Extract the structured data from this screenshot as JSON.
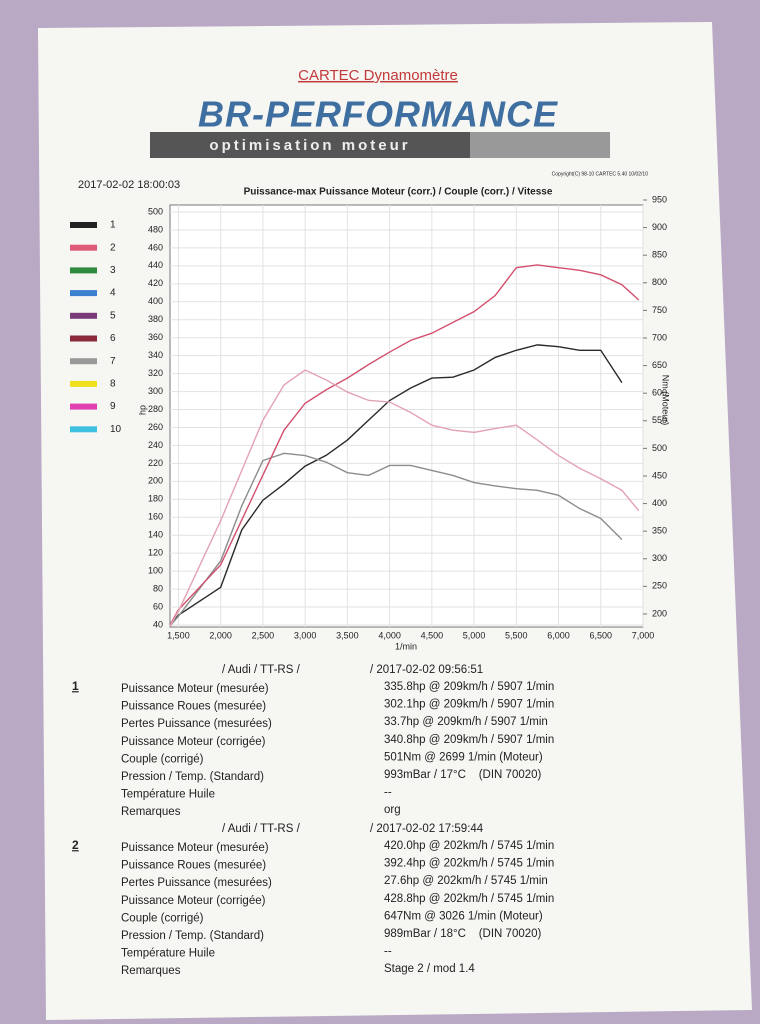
{
  "header": {
    "title": "CARTEC Dynamomètre",
    "brand": "BR-PERFORMANCE",
    "tagline": "optimisation moteur",
    "timestamp": "2017-02-02 18:00:03",
    "copyright": "Copyright(C) 98-10 CARTEC 5.40 10/02/10"
  },
  "chart_data": {
    "type": "line",
    "title": "Puissance-max Puissance Moteur (corr.) / Couple (corr.) / Vitesse",
    "y_label": "hp",
    "y2_label": "Nm (Moteur)",
    "x_label": "1/min",
    "x": [
      1400,
      1500,
      2000,
      2250,
      2500,
      2750,
      3000,
      3250,
      3500,
      3750,
      4000,
      4250,
      4500,
      4750,
      5000,
      5250,
      5500,
      5750,
      6000,
      6250,
      6500,
      6750,
      6950
    ],
    "series": [
      {
        "color": "#2a2a2a",
        "values": [
          40,
          51,
          82,
          146,
          179,
          197,
          217,
          229,
          246,
          268,
          290,
          304,
          315,
          316,
          324,
          338,
          346,
          352,
          350,
          346,
          346,
          310,
          null
        ]
      },
      {
        "color": "#8c8c8c",
        "axis": "y2",
        "values": [
          178,
          196,
          296,
          396,
          478,
          491,
          487,
          475,
          456,
          451,
          469,
          469,
          460,
          451,
          438,
          432,
          427,
          424,
          415,
          391,
          373,
          335,
          null
        ]
      },
      {
        "color": "#d2506e",
        "values": [
          40,
          57,
          107,
          157,
          207,
          257,
          287,
          302,
          315,
          330,
          344,
          357,
          365,
          377,
          389,
          407,
          438,
          441,
          438,
          435,
          430,
          419,
          402
        ]
      },
      {
        "color": "#e3a3b3",
        "axis": "y2",
        "values": [
          178,
          205,
          369,
          460,
          551,
          615,
          642,
          624,
          602,
          587,
          584,
          565,
          542,
          533,
          529,
          536,
          542,
          515,
          487,
          464,
          445,
          424,
          387
        ]
      }
    ],
    "legend": [
      {
        "label": "1",
        "color": "#222222"
      },
      {
        "label": "2",
        "color": "#e05a7a"
      },
      {
        "label": "3",
        "color": "#2e8b3e"
      },
      {
        "label": "4",
        "color": "#3a7fd0"
      },
      {
        "label": "5",
        "color": "#7a3a7a"
      },
      {
        "label": "6",
        "color": "#8a2a3a"
      },
      {
        "label": "7",
        "color": "#999999"
      },
      {
        "label": "8",
        "color": "#f0e020"
      },
      {
        "label": "9",
        "color": "#e040b0"
      },
      {
        "label": "10",
        "color": "#40c0e0"
      }
    ],
    "xlim": [
      1400,
      7000
    ],
    "xticks": [
      {
        "value": 1500,
        "label": "1,500"
      },
      {
        "value": 2000,
        "label": "2,000"
      },
      {
        "value": 2500,
        "label": "2,500"
      },
      {
        "value": 3000,
        "label": "3,000"
      },
      {
        "value": 3500,
        "label": "3,500"
      },
      {
        "value": 4000,
        "label": "4,000"
      },
      {
        "value": 4500,
        "label": "4,500"
      },
      {
        "value": 5000,
        "label": "5,000"
      },
      {
        "value": 5500,
        "label": "5,500"
      },
      {
        "value": 6000,
        "label": "6,000"
      },
      {
        "value": 6500,
        "label": "6,500"
      },
      {
        "value": 7000,
        "label": "7,000"
      }
    ],
    "ylim": [
      40,
      500
    ],
    "yticks": [
      40,
      60,
      80,
      100,
      120,
      140,
      160,
      180,
      200,
      220,
      240,
      260,
      280,
      300,
      320,
      340,
      360,
      380,
      400,
      420,
      440,
      460,
      480,
      500
    ],
    "y2lim": [
      180,
      950
    ],
    "y2ticks": [
      200,
      250,
      300,
      350,
      400,
      450,
      500,
      550,
      600,
      650,
      700,
      750,
      800,
      850,
      900,
      950
    ],
    "grid": true
  },
  "runs": [
    {
      "number": "1",
      "vehicle": "/ Audi / TT-RS /",
      "date": "/ 2017-02-02 09:56:51",
      "rows": [
        [
          "Puissance Moteur (mesurée)",
          "335.8hp @ 209km/h / 5907 1/min"
        ],
        [
          "Puissance Roues (mesurée)",
          "302.1hp @ 209km/h / 5907 1/min"
        ],
        [
          "Pertes Puissance (mesurées)",
          "33.7hp @ 209km/h / 5907 1/min"
        ],
        [
          "Puissance Moteur (corrigée)",
          "340.8hp @ 209km/h / 5907 1/min"
        ],
        [
          "Couple (corrigé)",
          "501Nm @ 2699 1/min (Moteur)"
        ],
        [
          "Pression / Temp. (Standard)",
          "993mBar / 17°C    (DIN 70020)"
        ],
        [
          "Température Huile",
          "--"
        ],
        [
          "Remarques",
          "org"
        ]
      ]
    },
    {
      "number": "2",
      "vehicle": "/ Audi / TT-RS /",
      "date": "/ 2017-02-02 17:59:44",
      "rows": [
        [
          "Puissance Moteur (mesurée)",
          "420.0hp @ 202km/h / 5745 1/min"
        ],
        [
          "Puissance Roues (mesurée)",
          "392.4hp @ 202km/h / 5745 1/min"
        ],
        [
          "Pertes Puissance (mesurées)",
          "27.6hp @ 202km/h / 5745 1/min"
        ],
        [
          "Puissance Moteur (corrigée)",
          "428.8hp @ 202km/h / 5745 1/min"
        ],
        [
          "Couple (corrigé)",
          "647Nm @ 3026 1/min (Moteur)"
        ],
        [
          "Pression / Temp. (Standard)",
          "989mBar / 18°C    (DIN 70020)"
        ],
        [
          "Température Huile",
          "--"
        ],
        [
          "Remarques",
          "Stage 2 / mod 1.4"
        ]
      ]
    }
  ]
}
